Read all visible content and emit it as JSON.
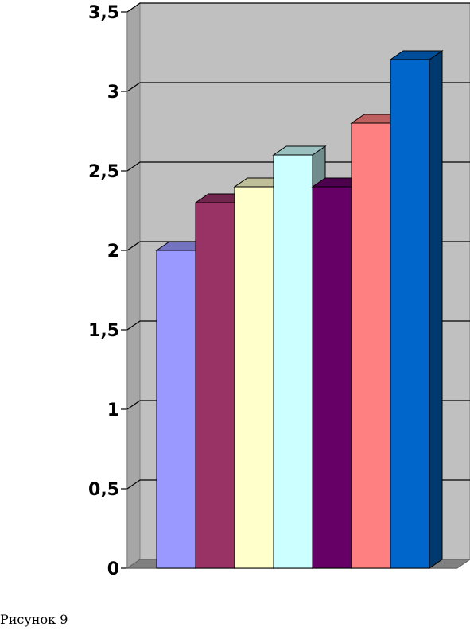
{
  "figure": {
    "caption": "Рисунок 9"
  },
  "chart_data": {
    "type": "bar",
    "style": "3d-column",
    "categories": [
      "",
      "",
      "",
      "",
      "",
      "",
      ""
    ],
    "values": [
      2.0,
      2.3,
      2.4,
      2.6,
      2.4,
      2.8,
      3.2
    ],
    "bar_colors": [
      "#9999FF",
      "#993366",
      "#FFFFCC",
      "#CCFFFF",
      "#660066",
      "#FF8080",
      "#0066CC"
    ],
    "ylim": [
      0,
      3.5
    ],
    "yticks": [
      0,
      0.5,
      1,
      1.5,
      2,
      2.5,
      3,
      3.5
    ],
    "ytick_labels": [
      "0",
      "0,5",
      "1",
      "1,5",
      "2",
      "2,5",
      "3",
      "3,5"
    ],
    "title": "",
    "xlabel": "",
    "ylabel": "",
    "grid": true,
    "legend": "none",
    "wall_color": "#C0C0C0",
    "floor_color": "#808080"
  }
}
